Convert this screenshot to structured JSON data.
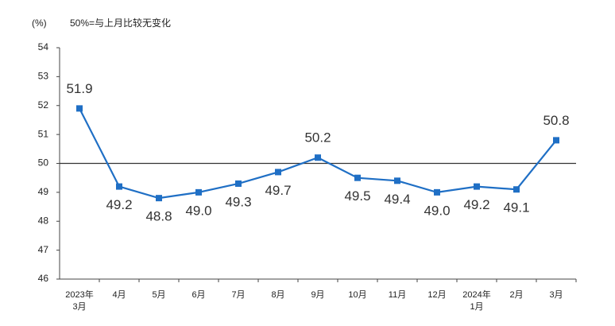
{
  "chart_data": {
    "type": "line",
    "unit": "(%)",
    "note": "50%=与上月比较无变化",
    "categories": [
      "2023年\n3月",
      "4月",
      "5月",
      "6月",
      "7月",
      "8月",
      "9月",
      "10月",
      "11月",
      "12月",
      "2024年\n1月",
      "2月",
      "3月"
    ],
    "series": [
      {
        "color": "#1f6fc5",
        "values": [
          51.9,
          49.2,
          48.8,
          49.0,
          49.3,
          49.7,
          50.2,
          49.5,
          49.4,
          49.0,
          49.2,
          49.1,
          50.8
        ],
        "value_labels": [
          "51.9",
          "49.2",
          "48.8",
          "49.0",
          "49.3",
          "49.7",
          "50.2",
          "49.5",
          "49.4",
          "49.0",
          "49.2",
          "49.1",
          "50.8"
        ]
      }
    ],
    "ylim": [
      46,
      54
    ],
    "yticks": [
      46,
      47,
      48,
      49,
      50,
      51,
      52,
      53,
      54
    ],
    "reference_line": 50
  }
}
